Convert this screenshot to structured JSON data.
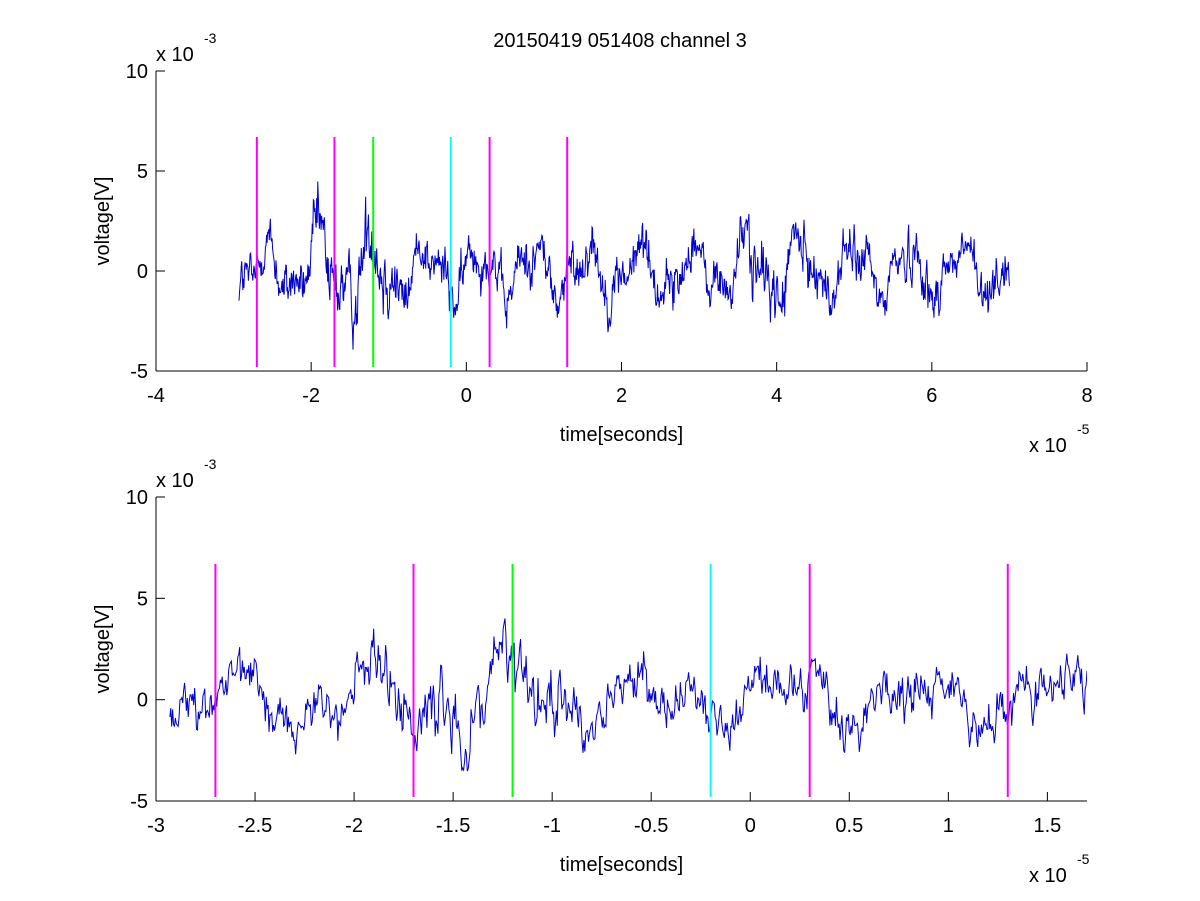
{
  "title": "20150419 051408 channel 3",
  "chart_data": [
    {
      "type": "line",
      "title": "20150419 051408 channel 3",
      "xlabel": "time[seconds]",
      "ylabel": "voltage[V]",
      "x_exponent": "x 10",
      "x_exponent_power": "-5",
      "y_exponent": "x 10",
      "y_exponent_power": "-3",
      "xlim": [
        -4,
        8
      ],
      "ylim": [
        -5,
        10
      ],
      "xticks": [
        -4,
        -2,
        0,
        2,
        4,
        6,
        8
      ],
      "xtick_labels": [
        "-4",
        "-2",
        "0",
        "2",
        "4",
        "6",
        "8"
      ],
      "yticks": [
        -5,
        0,
        5,
        10
      ],
      "ytick_labels": [
        "-5",
        "0",
        "5",
        "10"
      ],
      "grid": false,
      "signal_color": "#0000cc",
      "signal_range": [
        -2.93,
        7.0
      ],
      "markers": [
        {
          "x": -2.7,
          "color": "#ff00ff"
        },
        {
          "x": -1.7,
          "color": "#ff00ff"
        },
        {
          "x": -1.2,
          "color": "#00ff00"
        },
        {
          "x": -0.2,
          "color": "#00ffff"
        },
        {
          "x": 0.3,
          "color": "#ff00ff"
        },
        {
          "x": 1.3,
          "color": "#ff00ff"
        }
      ],
      "marker_ylim": [
        -4.8,
        6.7
      ]
    },
    {
      "type": "line",
      "title": "",
      "xlabel": "time[seconds]",
      "ylabel": "voltage[V]",
      "x_exponent": "x 10",
      "x_exponent_power": "-5",
      "y_exponent": "x 10",
      "y_exponent_power": "-3",
      "xlim": [
        -3.0,
        1.7
      ],
      "ylim": [
        -5,
        10
      ],
      "xticks": [
        -3,
        -2.5,
        -2,
        -1.5,
        -1,
        -0.5,
        0,
        0.5,
        1,
        1.5
      ],
      "xtick_labels": [
        "-3",
        "-2.5",
        "-2",
        "-1.5",
        "-1",
        "-0.5",
        "0",
        "0.5",
        "1",
        "1.5"
      ],
      "yticks": [
        -5,
        0,
        5,
        10
      ],
      "ytick_labels": [
        "-5",
        "0",
        "5",
        "10"
      ],
      "grid": false,
      "signal_color": "#0000cc",
      "signal_range": [
        -2.93,
        1.7
      ],
      "markers": [
        {
          "x": -2.7,
          "color": "#ff00ff"
        },
        {
          "x": -1.7,
          "color": "#ff00ff"
        },
        {
          "x": -1.2,
          "color": "#00ff00"
        },
        {
          "x": -0.2,
          "color": "#00ffff"
        },
        {
          "x": 0.3,
          "color": "#ff00ff"
        },
        {
          "x": 1.3,
          "color": "#ff00ff"
        }
      ],
      "marker_ylim": [
        -4.8,
        6.7
      ]
    }
  ]
}
